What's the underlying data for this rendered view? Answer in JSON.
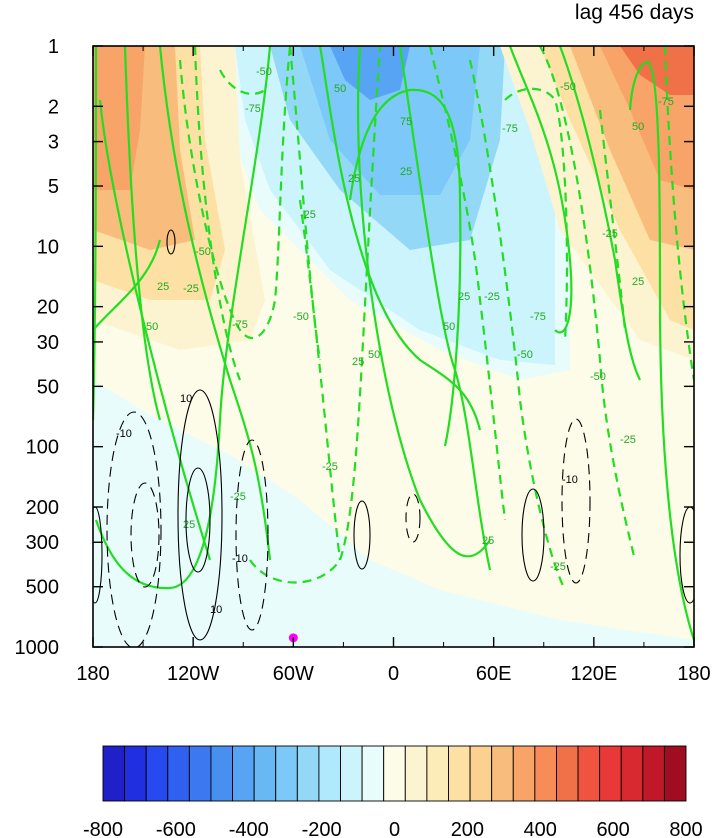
{
  "chart_data": {
    "type": "heatmap",
    "title": "lag 456 days",
    "x_tick_labels": [
      "180",
      "120W",
      "60W",
      "0",
      "60E",
      "120E",
      "180"
    ],
    "x_tick_values": [
      -180,
      -120,
      -60,
      0,
      60,
      120,
      180
    ],
    "y_tick_labels": [
      "1",
      "2",
      "3",
      "5",
      "10",
      "20",
      "30",
      "50",
      "100",
      "200",
      "300",
      "500",
      "1000"
    ],
    "y_tick_values": [
      1,
      2,
      3,
      5,
      10,
      20,
      30,
      50,
      100,
      200,
      300,
      500,
      1000
    ],
    "y_scale": "log",
    "y_inverted": true,
    "colorbar": {
      "tick_labels": [
        "-800",
        "-600",
        "-400",
        "-200",
        "0",
        "200",
        "400",
        "600",
        "800"
      ],
      "tick_values": [
        -800,
        -600,
        -400,
        -200,
        0,
        200,
        400,
        600,
        800
      ],
      "colors": [
        "#2020c8",
        "#2030e0",
        "#2848f0",
        "#3060f0",
        "#3c78f0",
        "#4890f0",
        "#58a4f4",
        "#68b8f4",
        "#7cc8f8",
        "#94d8f8",
        "#b0e8fc",
        "#ccf4fc",
        "#e8fcfc",
        "#fcfce8",
        "#fcf4d0",
        "#fcecb8",
        "#fce0a4",
        "#fcd090",
        "#f8bc7c",
        "#f8a468",
        "#f88c58",
        "#f07048",
        "#f05440",
        "#e83838",
        "#d82830",
        "#c01828",
        "#a00c20"
      ]
    },
    "contour_labels_green": [
      "25",
      "50",
      "-25",
      "-50",
      "-75",
      "75"
    ],
    "contour_labels_black": [
      "10",
      "-10"
    ],
    "marker": {
      "lon": -60,
      "level": 900,
      "color": "#ff00ff"
    }
  }
}
